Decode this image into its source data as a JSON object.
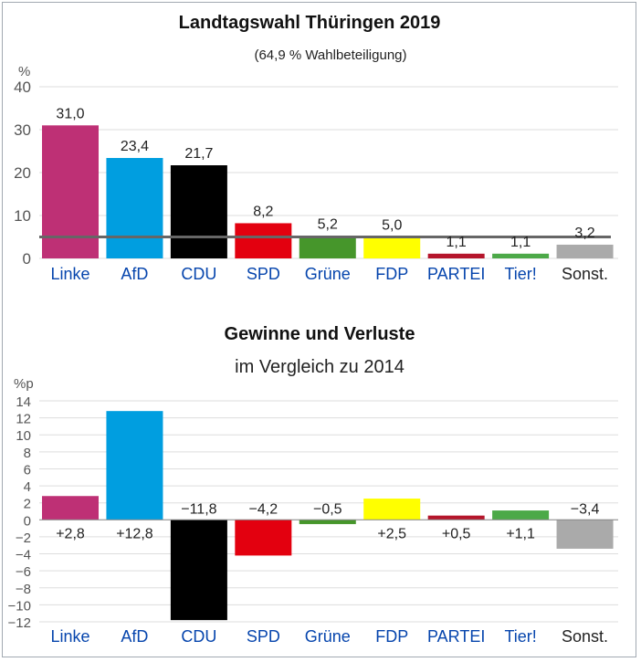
{
  "chart_data": [
    {
      "type": "bar",
      "title": "Landtagswahl Thüringen 2019",
      "subtitle": "(64,9 % Wahlbeteiligung)",
      "ylabel": "%",
      "ylim": [
        0,
        40
      ],
      "yticks": [
        "0",
        "10",
        "20",
        "30",
        "40"
      ],
      "grid": true,
      "threshold": 5,
      "categories": [
        "Linke",
        "AfD",
        "CDU",
        "SPD",
        "Grüne",
        "FDP",
        "PARTEI",
        "Tier!",
        "Sonst."
      ],
      "values": [
        31.0,
        23.4,
        21.7,
        8.2,
        5.2,
        5.0,
        1.1,
        1.1,
        3.2
      ],
      "value_labels": [
        "31,0",
        "23,4",
        "21,7",
        "8,2",
        "5,2",
        "5,0",
        "1,1",
        "1,1",
        "3,2"
      ]
    },
    {
      "type": "bar",
      "title": "Gewinne und Verluste",
      "subtitle": "im Vergleich zu 2014",
      "ylabel": "%p",
      "ylim": [
        -12,
        14
      ],
      "yticks": [
        "−12",
        "−10",
        "−8",
        "−6",
        "−4",
        "−2",
        "0",
        "2",
        "4",
        "6",
        "8",
        "10",
        "12",
        "14"
      ],
      "grid": true,
      "categories": [
        "Linke",
        "AfD",
        "CDU",
        "SPD",
        "Grüne",
        "FDP",
        "PARTEI",
        "Tier!",
        "Sonst."
      ],
      "values": [
        2.8,
        12.8,
        -11.8,
        -4.2,
        -0.5,
        2.5,
        0.5,
        1.1,
        -3.4
      ],
      "value_labels": [
        "+2,8",
        "+12,8",
        "−11,8",
        "−4,2",
        "−0,5",
        "+2,5",
        "+0,5",
        "+1,1",
        "−3,4"
      ]
    }
  ],
  "colors": {
    "bars": [
      "#be3075",
      "#009ee0",
      "#000000",
      "#e3000f",
      "#46962b",
      "#ffff00",
      "#b5152b",
      "#4ca948",
      "#aaaaaa"
    ],
    "category_label_link": "#0645ad",
    "category_label_plain": "#222222",
    "grid": "#dddddd",
    "threshold_line": "#666666"
  },
  "category_links": [
    true,
    true,
    true,
    true,
    true,
    true,
    true,
    true,
    false
  ]
}
